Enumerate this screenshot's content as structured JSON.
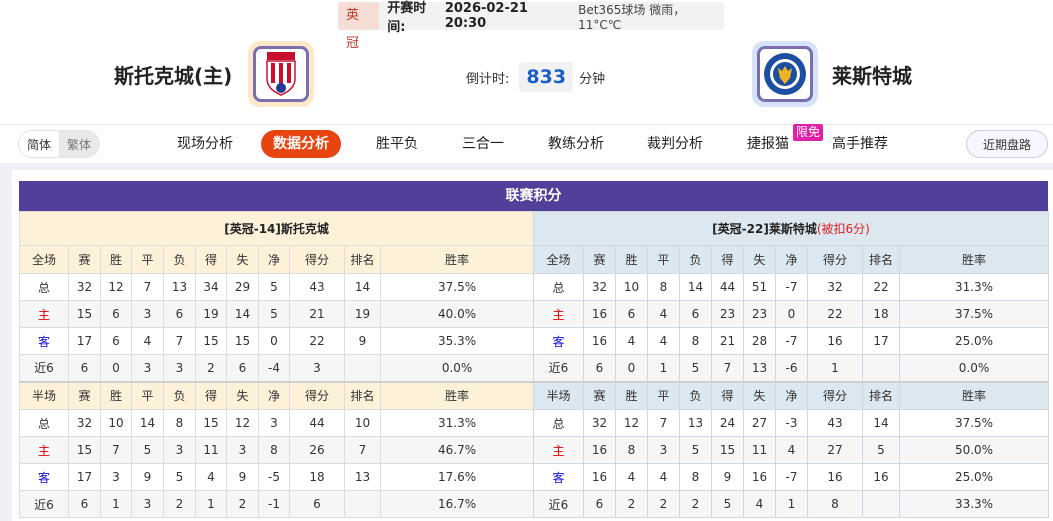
{
  "match": {
    "league": "英冠",
    "time_label": "开赛时间:",
    "time": "2026-02-21 20:30",
    "venue_weather": "Bet365球场  微雨，11°C℃",
    "home": "斯托克城(主)",
    "away": "莱斯特城",
    "countdown_label": "倒计时:",
    "countdown": "833",
    "countdown_unit": "分钟"
  },
  "nav": {
    "lang": [
      "简体",
      "繁体"
    ],
    "tabs": [
      "现场分析",
      "数据分析",
      "胜平负",
      "三合一",
      "教练分析",
      "裁判分析",
      "捷报猫",
      "高手推荐"
    ],
    "active": "数据分析",
    "badge": "限免",
    "right_button": "近期盘路"
  },
  "standings": {
    "title": "联赛积分",
    "columns": [
      "赛",
      "胜",
      "平",
      "负",
      "得",
      "失",
      "净",
      "得分",
      "排名",
      "胜率"
    ],
    "full_label": "全场",
    "half_label": "半场",
    "left": {
      "caption": "[英冠-14]斯托克城",
      "note": "",
      "full": [
        [
          "总",
          "32",
          "12",
          "7",
          "13",
          "34",
          "29",
          "5",
          "43",
          "14",
          "37.5%"
        ],
        [
          "主",
          "15",
          "6",
          "3",
          "6",
          "19",
          "14",
          "5",
          "21",
          "19",
          "40.0%"
        ],
        [
          "客",
          "17",
          "6",
          "4",
          "7",
          "15",
          "15",
          "0",
          "22",
          "9",
          "35.3%"
        ],
        [
          "近6",
          "6",
          "0",
          "3",
          "3",
          "2",
          "6",
          "-4",
          "3",
          "",
          "0.0%"
        ]
      ],
      "half": [
        [
          "总",
          "32",
          "10",
          "14",
          "8",
          "15",
          "12",
          "3",
          "44",
          "10",
          "31.3%"
        ],
        [
          "主",
          "15",
          "7",
          "5",
          "3",
          "11",
          "3",
          "8",
          "26",
          "7",
          "46.7%"
        ],
        [
          "客",
          "17",
          "3",
          "9",
          "5",
          "4",
          "9",
          "-5",
          "18",
          "13",
          "17.6%"
        ],
        [
          "近6",
          "6",
          "1",
          "3",
          "2",
          "1",
          "2",
          "-1",
          "6",
          "",
          "16.7%"
        ]
      ]
    },
    "right": {
      "caption": "[英冠-22]莱斯特城",
      "note": "(被扣6分)",
      "full": [
        [
          "总",
          "32",
          "10",
          "8",
          "14",
          "44",
          "51",
          "-7",
          "32",
          "22",
          "31.3%"
        ],
        [
          "主",
          "16",
          "6",
          "4",
          "6",
          "23",
          "23",
          "0",
          "22",
          "18",
          "37.5%"
        ],
        [
          "客",
          "16",
          "4",
          "4",
          "8",
          "21",
          "28",
          "-7",
          "16",
          "17",
          "25.0%"
        ],
        [
          "近6",
          "6",
          "0",
          "1",
          "5",
          "7",
          "13",
          "-6",
          "1",
          "",
          "0.0%"
        ]
      ],
      "half": [
        [
          "总",
          "32",
          "12",
          "7",
          "13",
          "24",
          "27",
          "-3",
          "43",
          "14",
          "37.5%"
        ],
        [
          "主",
          "16",
          "8",
          "3",
          "5",
          "15",
          "11",
          "4",
          "27",
          "5",
          "50.0%"
        ],
        [
          "客",
          "16",
          "4",
          "4",
          "8",
          "9",
          "16",
          "-7",
          "16",
          "16",
          "25.0%"
        ],
        [
          "近6",
          "6",
          "2",
          "2",
          "2",
          "5",
          "4",
          "1",
          "8",
          "",
          "33.3%"
        ]
      ]
    }
  }
}
